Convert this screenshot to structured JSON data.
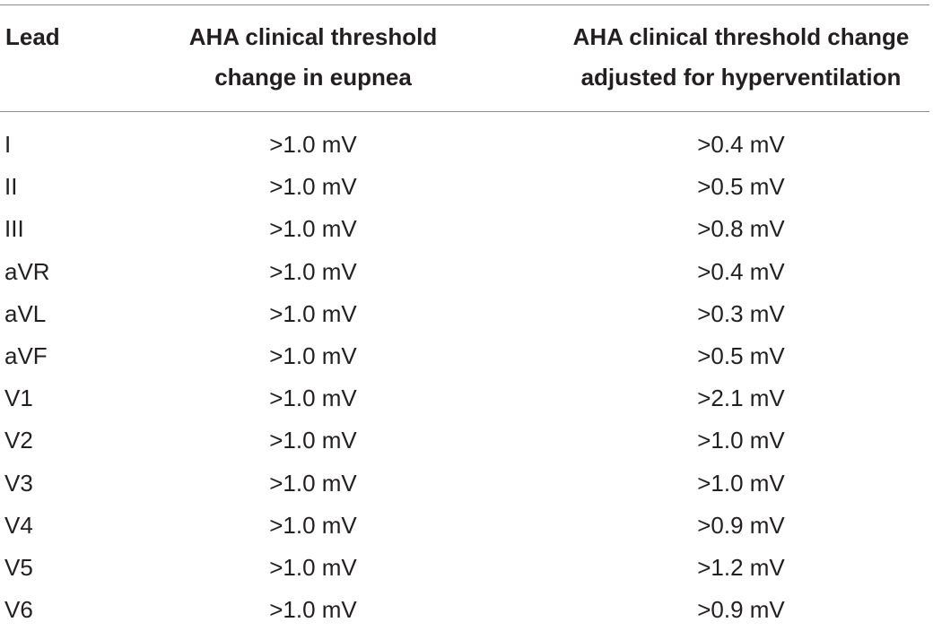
{
  "table": {
    "headers": {
      "lead": "Lead",
      "eupnea": [
        "AHA clinical threshold",
        "change in eupnea"
      ],
      "hyperventilation": [
        "AHA clinical threshold change",
        "adjusted for hyperventilation"
      ]
    },
    "rows": [
      {
        "lead": "I",
        "eupnea": ">1.0 mV",
        "hyper": ">0.4 mV"
      },
      {
        "lead": "II",
        "eupnea": ">1.0 mV",
        "hyper": ">0.5 mV"
      },
      {
        "lead": "III",
        "eupnea": ">1.0 mV",
        "hyper": ">0.8 mV"
      },
      {
        "lead": "aVR",
        "eupnea": ">1.0 mV",
        "hyper": ">0.4 mV"
      },
      {
        "lead": "aVL",
        "eupnea": ">1.0 mV",
        "hyper": ">0.3 mV"
      },
      {
        "lead": "aVF",
        "eupnea": ">1.0 mV",
        "hyper": ">0.5 mV"
      },
      {
        "lead": "V1",
        "eupnea": ">1.0 mV",
        "hyper": ">2.1 mV"
      },
      {
        "lead": "V2",
        "eupnea": ">1.0 mV",
        "hyper": ">1.0 mV"
      },
      {
        "lead": "V3",
        "eupnea": ">1.0 mV",
        "hyper": ">1.0 mV"
      },
      {
        "lead": "V4",
        "eupnea": ">1.0 mV",
        "hyper": ">0.9 mV"
      },
      {
        "lead": "V5",
        "eupnea": ">1.0 mV",
        "hyper": ">1.2 mV"
      },
      {
        "lead": "V6",
        "eupnea": ">1.0 mV",
        "hyper": ">0.9 mV"
      }
    ]
  }
}
